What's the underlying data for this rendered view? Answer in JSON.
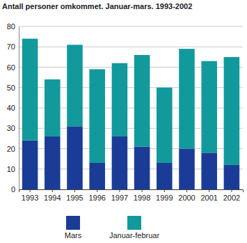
{
  "chart_data": {
    "type": "bar",
    "title": "Antall personer omkommet. Januar-mars. 1993-2002",
    "categories": [
      "1993",
      "1994",
      "1995",
      "1996",
      "1997",
      "1998",
      "1999",
      "2000",
      "2001",
      "2002"
    ],
    "series": [
      {
        "name": "Mars",
        "color": "#1a3c96",
        "values": [
          24,
          26,
          31,
          13,
          26,
          21,
          13,
          20,
          18,
          12
        ]
      },
      {
        "name": "Januar-februar",
        "color": "#12999b",
        "values": [
          50,
          28,
          40,
          46,
          36,
          45,
          37,
          49,
          45,
          53
        ]
      }
    ],
    "ylim": [
      0,
      80
    ],
    "yticks": [
      0,
      10,
      20,
      30,
      40,
      50,
      60,
      70,
      80
    ],
    "grid": true,
    "stacked": true,
    "legend": "bottom"
  }
}
